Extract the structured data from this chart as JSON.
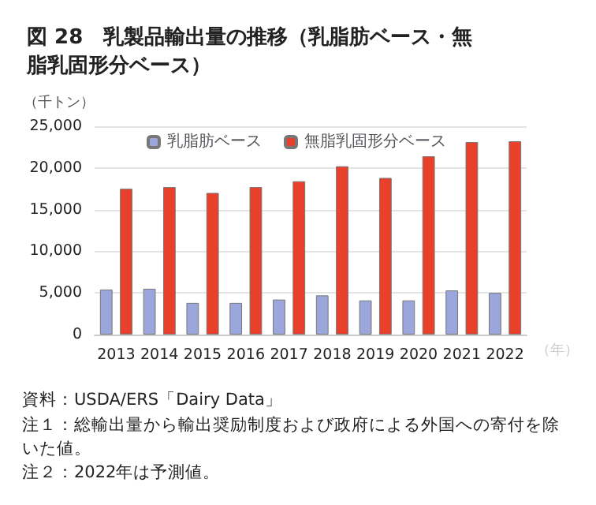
{
  "chart_data": {
    "type": "bar",
    "title": "図 28　乳製品輸出量の推移（乳脂肪ベース・無脂乳固形分ベース）",
    "ylabel": "（千トン）",
    "xlabel": "（年）",
    "categories": [
      "2013",
      "2014",
      "2015",
      "2016",
      "2017",
      "2018",
      "2019",
      "2020",
      "2021",
      "2022"
    ],
    "series": [
      {
        "name": "乳脂肪ベース",
        "color": "#9aa6dc",
        "values": [
          5400,
          5500,
          3800,
          3800,
          4200,
          4700,
          4100,
          4100,
          5300,
          5000
        ]
      },
      {
        "name": "無脂乳固形分ベース",
        "color": "#e8402a",
        "values": [
          17500,
          17700,
          17000,
          17700,
          18400,
          20200,
          18800,
          21400,
          23100,
          23200
        ]
      }
    ],
    "ylim": [
      0,
      25000
    ],
    "yticks": [
      0,
      {
        "value": 5000,
        "label": "5,000"
      },
      {
        "value": 10000,
        "label": "10,000"
      },
      {
        "value": 15000,
        "label": "15,000"
      },
      {
        "value": 20000,
        "label": "20,000"
      },
      {
        "value": 25000,
        "label": "25,000"
      }
    ],
    "grid": "y",
    "legend": "top left",
    "annotations": [
      "資料：USDA/ERS「Dairy Data」",
      "注１：総輸出量から輸出奨励制度および政府による外国への寄付を除いた値。",
      "注２：2022年は予測値。"
    ]
  }
}
